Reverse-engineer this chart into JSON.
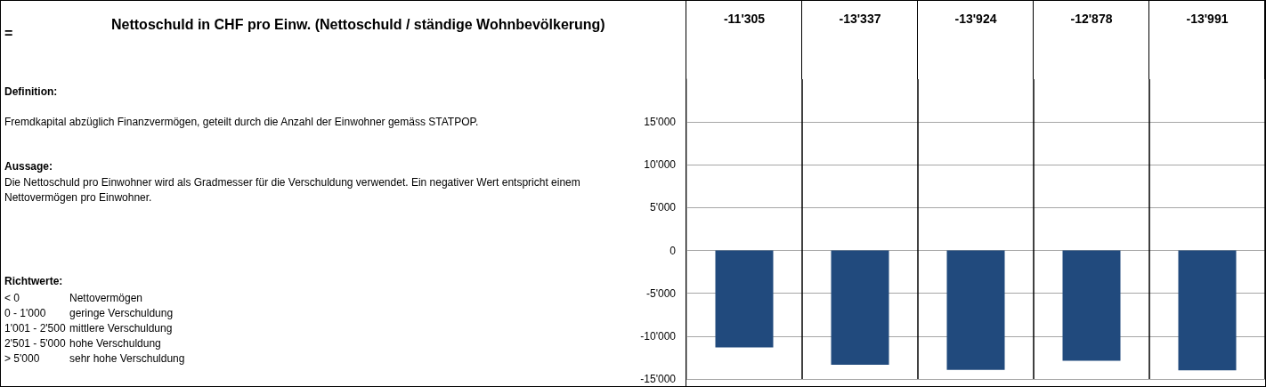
{
  "chart_data": {
    "type": "bar",
    "title": "Nettoschuld in CHF pro Einw. (Nettoschuld / ständige Wohnbevölkerung)",
    "categories": [
      null,
      null,
      null,
      null,
      null
    ],
    "values": [
      -11305,
      -13337,
      -13924,
      -12878,
      -13991
    ],
    "value_labels": [
      "-11'305",
      "-13'337",
      "-13'924",
      "-12'878",
      "-13'991"
    ],
    "color": "#214a7d",
    "ylim": [
      -15000,
      20000
    ],
    "yticks": [
      {
        "value": -15000,
        "label": "-15'000"
      },
      {
        "value": -10000,
        "label": "-10'000"
      },
      {
        "value": -5000,
        "label": "-5'000"
      },
      0,
      {
        "value": 5000,
        "label": "5'000"
      },
      {
        "value": 10000,
        "label": "10'000"
      },
      {
        "value": 15000,
        "label": "15'000"
      }
    ],
    "grid": true,
    "annotations": [
      "=",
      "Definition:",
      "Fremdkapital abzüglich Finanzvermögen, geteilt durch die Anzahl der Einwohner gemäss STATPOP.",
      "Aussage:",
      "Die Nettoschuld pro Einwohner wird als Gradmesser für die Verschuldung verwendet. Ein negativer Wert entspricht einem Nettovermögen pro Einwohner.",
      "Richtwerte:",
      "< 0",
      "Nettovermögen",
      "0 - 1'000",
      "geringe Verschuldung",
      "1'001 - 2'500",
      "mittlere Verschuldung",
      "2'501 - 5'000",
      "hohe Verschuldung",
      "> 5'000",
      "sehr hohe Verschuldung"
    ]
  }
}
